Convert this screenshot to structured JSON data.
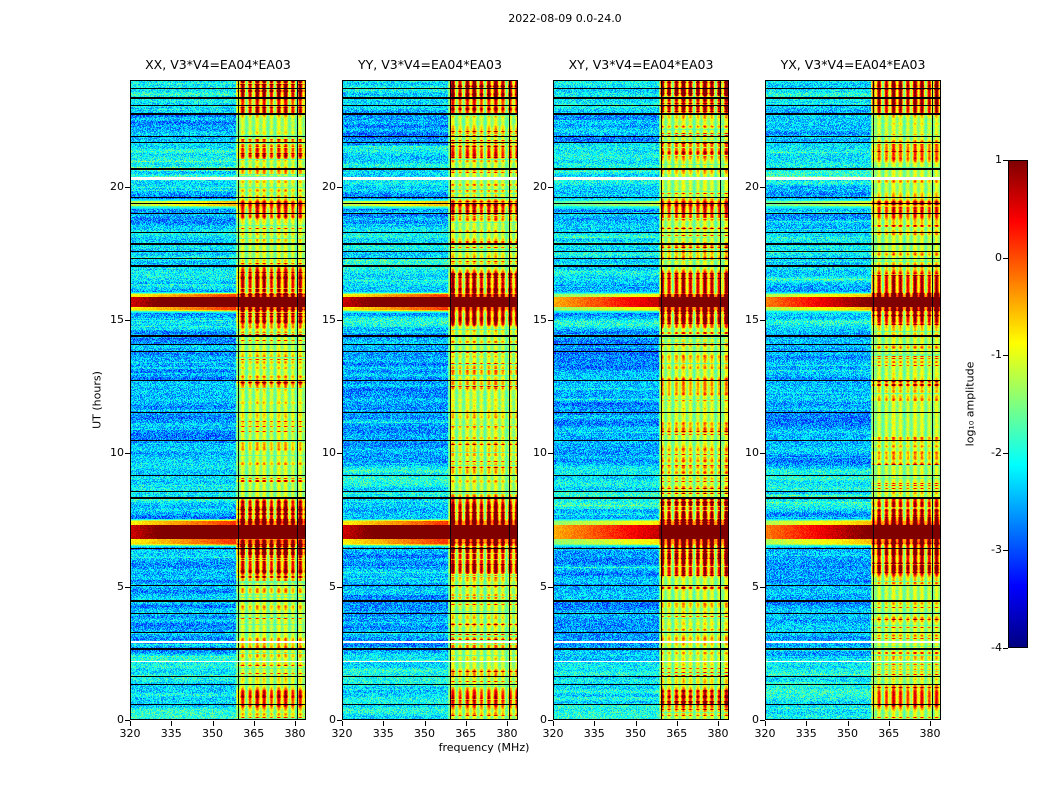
{
  "title": "2022-08-09 0.0-24.0",
  "chart_data": {
    "type": "heatmap",
    "title": "2022-08-09 0.0-24.0",
    "panels": [
      {
        "label": "XX, V3*V4=EA04*EA03",
        "seed": 1,
        "left_scale": 1.0
      },
      {
        "label": "YY, V3*V4=EA04*EA03",
        "seed": 2,
        "left_scale": 1.0
      },
      {
        "label": "XY, V3*V4=EA04*EA03",
        "seed": 3,
        "left_scale": 0.66
      },
      {
        "label": "YX, V3*V4=EA04*EA03",
        "seed": 4,
        "left_scale": 0.74
      }
    ],
    "x_axis": {
      "label": "frequency (MHz)",
      "min": 320,
      "max": 384,
      "ticks": [
        320,
        335,
        350,
        365,
        380
      ]
    },
    "y_axis": {
      "label": "UT (hours)",
      "min": 0,
      "max": 24,
      "ticks": [
        0,
        5,
        10,
        15,
        20
      ]
    },
    "colorbar": {
      "label": "log₁₀ amplitude",
      "min": -4,
      "max": 1,
      "ticks": [
        1,
        0,
        -1,
        -2,
        -3,
        -4
      ],
      "colormap": "jet"
    },
    "features": {
      "noise_floor": -2.55,
      "rfi_band_mhz": [
        358.5,
        384
      ],
      "band_stripe_period_mhz": 2.6,
      "bursts": [
        {
          "t0": 6.5,
          "t1": 7.55,
          "p0": 6.78,
          "p1": 7.3,
          "amp": 3.9
        },
        {
          "t0": 15.28,
          "t1": 16.05,
          "p0": 15.5,
          "p1": 15.88,
          "amp": 3.9
        },
        {
          "t0": 19.15,
          "t1": 19.55,
          "p0": 19.28,
          "p1": 19.45,
          "amp": 1.6
        }
      ],
      "band_hot_zones": [
        [
          5.3,
          8.4,
          1.0
        ],
        [
          14.7,
          16.95,
          1.05
        ],
        [
          18.7,
          19.6,
          0.8
        ],
        [
          22.55,
          24.5,
          0.75
        ],
        [
          23.05,
          24.5,
          1.15
        ],
        [
          0.3,
          1.3,
          0.8
        ],
        [
          20.9,
          21.8,
          0.6
        ],
        [
          12.3,
          12.9,
          0.45
        ]
      ],
      "green_zones": [
        [
          7.7,
          9.7
        ],
        [
          16.1,
          18.6
        ],
        [
          -0.5,
          2.6
        ],
        [
          19.8,
          21.7
        ],
        [
          22.7,
          24.5
        ],
        [
          14.5,
          15.3
        ]
      ],
      "black_lines": [
        [
          23.7,
          1
        ],
        [
          23.35,
          2
        ],
        [
          23.08,
          1
        ],
        [
          22.75,
          2
        ],
        [
          21.9,
          1
        ],
        [
          21.68,
          1
        ],
        [
          20.7,
          2
        ],
        [
          19.6,
          1
        ],
        [
          19.38,
          1
        ],
        [
          19.0,
          1
        ],
        [
          18.3,
          1
        ],
        [
          17.9,
          2
        ],
        [
          17.6,
          1
        ],
        [
          17.32,
          1
        ],
        [
          17.05,
          2
        ],
        [
          14.42,
          2
        ],
        [
          14.1,
          1
        ],
        [
          13.82,
          1
        ],
        [
          12.75,
          1
        ],
        [
          11.55,
          1
        ],
        [
          10.5,
          1
        ],
        [
          9.2,
          1
        ],
        [
          8.6,
          1
        ],
        [
          8.35,
          2
        ],
        [
          6.45,
          1
        ],
        [
          5.05,
          1
        ],
        [
          4.5,
          2
        ],
        [
          4.0,
          1
        ],
        [
          3.3,
          1
        ],
        [
          2.7,
          2
        ],
        [
          1.65,
          1
        ],
        [
          1.35,
          1
        ],
        [
          0.6,
          1
        ]
      ],
      "white_lines": [
        [
          20.35,
          3
        ],
        [
          2.98,
          2
        ],
        [
          2.2,
          1
        ]
      ],
      "dark_vlines_mhz": [
        359.3,
        380.6
      ]
    }
  }
}
